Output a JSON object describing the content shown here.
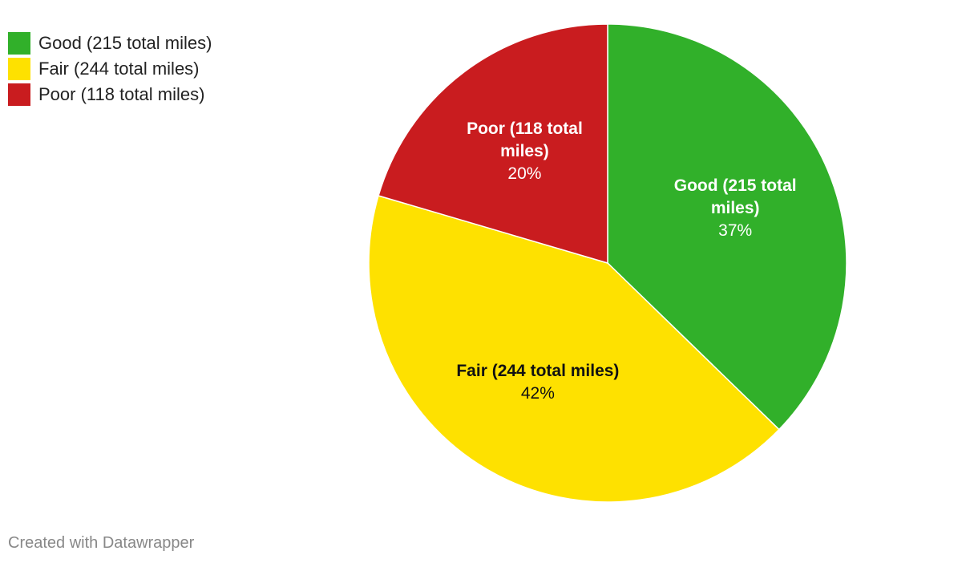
{
  "chart_data": {
    "type": "pie",
    "slices": [
      {
        "label": "Good (215 total miles)",
        "value": 215,
        "percent_label": "37%",
        "color": "#31b02a",
        "label_color": "#ffffff",
        "label_lines": [
          "Good (215 total",
          "miles)"
        ]
      },
      {
        "label": "Fair (244 total miles)",
        "value": 244,
        "percent_label": "42%",
        "color": "#fee100",
        "label_color": "#111111",
        "label_lines": [
          "Fair (244 total miles)"
        ]
      },
      {
        "label": "Poor (118 total miles)",
        "value": 118,
        "percent_label": "20%",
        "color": "#c91c1f",
        "label_color": "#ffffff",
        "label_lines": [
          "Poor (118 total",
          "miles)"
        ]
      }
    ],
    "legend_position": "top-left",
    "start_angle": "12 o'clock",
    "direction": "clockwise"
  },
  "credit": "Created with Datawrapper"
}
